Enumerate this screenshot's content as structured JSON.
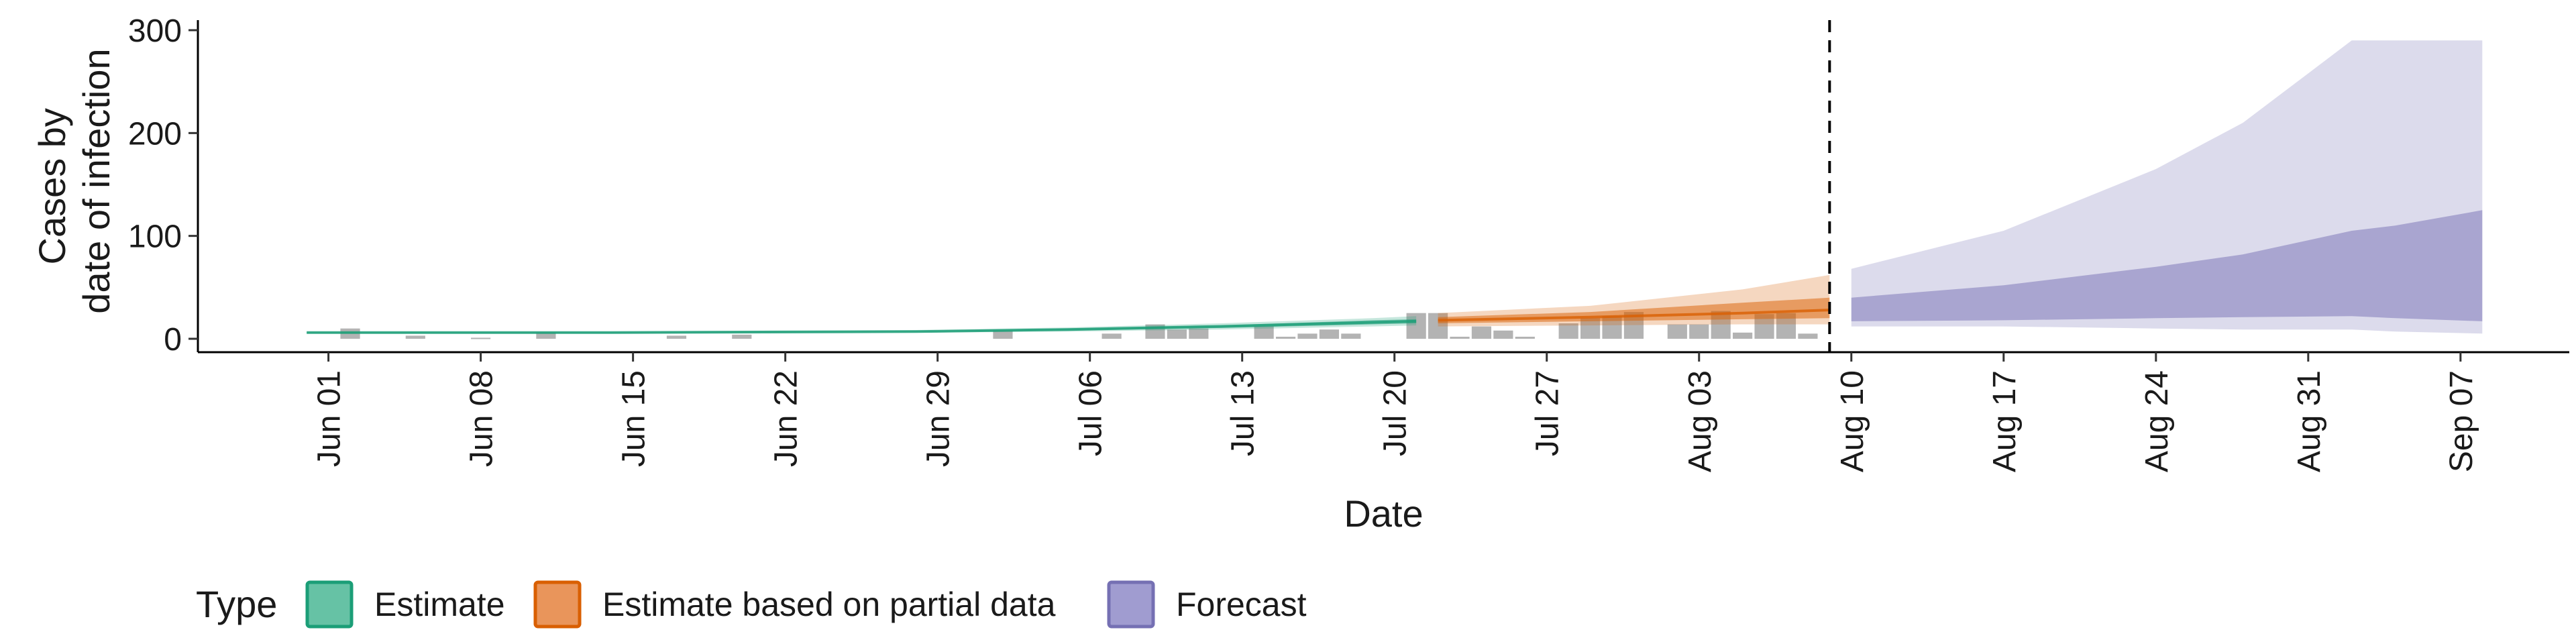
{
  "chart_data": {
    "type": "area",
    "xlabel": "Date",
    "ylabel_lines": [
      "Cases by",
      "date of infection"
    ],
    "ylim": [
      0,
      300
    ],
    "yticks": [
      0,
      100,
      200,
      300
    ],
    "xlim": [
      "2020-05-26",
      "2020-09-12"
    ],
    "xticks": [
      {
        "date": "2020-06-01",
        "label": "Jun 01"
      },
      {
        "date": "2020-06-08",
        "label": "Jun 08"
      },
      {
        "date": "2020-06-15",
        "label": "Jun 15"
      },
      {
        "date": "2020-06-22",
        "label": "Jun 22"
      },
      {
        "date": "2020-06-29",
        "label": "Jun 29"
      },
      {
        "date": "2020-07-06",
        "label": "Jul 06"
      },
      {
        "date": "2020-07-13",
        "label": "Jul 13"
      },
      {
        "date": "2020-07-20",
        "label": "Jul 20"
      },
      {
        "date": "2020-07-27",
        "label": "Jul 27"
      },
      {
        "date": "2020-08-03",
        "label": "Aug 03"
      },
      {
        "date": "2020-08-10",
        "label": "Aug 10"
      },
      {
        "date": "2020-08-17",
        "label": "Aug 17"
      },
      {
        "date": "2020-08-24",
        "label": "Aug 24"
      },
      {
        "date": "2020-08-31",
        "label": "Aug 31"
      },
      {
        "date": "2020-09-07",
        "label": "Sep 07"
      }
    ],
    "vline_date": "2020-08-09",
    "legend": {
      "title": "Type",
      "position": "bottom",
      "entries": [
        {
          "label": "Estimate",
          "fill": "#66c2a5",
          "stroke": "#1b9e77"
        },
        {
          "label": "Estimate based on partial data",
          "fill": "#e9955b",
          "stroke": "#d95f02"
        },
        {
          "label": "Forecast",
          "fill": "#a09cd0",
          "stroke": "#7570b3"
        }
      ]
    },
    "series": [
      {
        "type_label": "Estimate",
        "color": "#1b9e77",
        "bands": [
          {
            "date": "2020-05-31",
            "lo": 5,
            "hi": 7,
            "lo50": 5.5,
            "hi50": 6.5,
            "median": 6
          },
          {
            "date": "2020-06-07",
            "lo": 5,
            "hi": 7,
            "lo50": 5.5,
            "hi50": 6.5,
            "median": 6
          },
          {
            "date": "2020-06-14",
            "lo": 5,
            "hi": 7,
            "lo50": 5.5,
            "hi50": 6.5,
            "median": 6
          },
          {
            "date": "2020-06-21",
            "lo": 5.5,
            "hi": 8,
            "lo50": 6,
            "hi50": 7,
            "median": 6.5
          },
          {
            "date": "2020-06-28",
            "lo": 6,
            "hi": 8.5,
            "lo50": 6.5,
            "hi50": 7.5,
            "median": 7
          },
          {
            "date": "2020-07-05",
            "lo": 7,
            "hi": 11,
            "lo50": 8,
            "hi50": 10,
            "median": 9
          },
          {
            "date": "2020-07-12",
            "lo": 9,
            "hi": 15,
            "lo50": 10.5,
            "hi50": 13,
            "median": 12
          },
          {
            "date": "2020-07-19",
            "lo": 12,
            "hi": 20,
            "lo50": 14,
            "hi50": 18,
            "median": 16
          },
          {
            "date": "2020-07-21",
            "lo": 13,
            "hi": 22,
            "lo50": 15,
            "hi50": 19,
            "median": 17
          }
        ]
      },
      {
        "type_label": "Estimate based on partial data",
        "color": "#d95f02",
        "bands": [
          {
            "date": "2020-07-22",
            "lo": 12,
            "hi": 25,
            "lo50": 15,
            "hi50": 21,
            "median": 18
          },
          {
            "date": "2020-07-29",
            "lo": 13,
            "hi": 32,
            "lo50": 17,
            "hi50": 26,
            "median": 21
          },
          {
            "date": "2020-08-05",
            "lo": 14,
            "hi": 48,
            "lo50": 19,
            "hi50": 35,
            "median": 25
          },
          {
            "date": "2020-08-09",
            "lo": 14,
            "hi": 62,
            "lo50": 20,
            "hi50": 40,
            "median": 28
          }
        ]
      },
      {
        "type_label": "Forecast",
        "color": "#7570b3",
        "bands": [
          {
            "date": "2020-08-10",
            "lo": 12,
            "hi": 68,
            "lo50": 17,
            "hi50": 40
          },
          {
            "date": "2020-08-17",
            "lo": 12,
            "hi": 105,
            "lo50": 18,
            "hi50": 52
          },
          {
            "date": "2020-08-24",
            "lo": 10,
            "hi": 165,
            "lo50": 20,
            "hi50": 70
          },
          {
            "date": "2020-08-28",
            "lo": 9,
            "hi": 210,
            "lo50": 21,
            "hi50": 82
          },
          {
            "date": "2020-09-02",
            "lo": 9,
            "hi": 290,
            "lo50": 22,
            "hi50": 105
          },
          {
            "date": "2020-09-04",
            "lo": 7,
            "hi": 290,
            "lo50": 20,
            "hi50": 110
          },
          {
            "date": "2020-09-08",
            "lo": 5,
            "hi": 290,
            "lo50": 17,
            "hi50": 125
          }
        ]
      }
    ],
    "reported_cases": {
      "color": "#b3b3b3",
      "points": [
        {
          "date": "2020-06-02",
          "value": 10
        },
        {
          "date": "2020-06-05",
          "value": 3
        },
        {
          "date": "2020-06-08",
          "value": 1
        },
        {
          "date": "2020-06-11",
          "value": 6
        },
        {
          "date": "2020-06-17",
          "value": 3
        },
        {
          "date": "2020-06-20",
          "value": 4
        },
        {
          "date": "2020-07-02",
          "value": 8
        },
        {
          "date": "2020-07-07",
          "value": 5
        },
        {
          "date": "2020-07-09",
          "value": 14
        },
        {
          "date": "2020-07-10",
          "value": 9
        },
        {
          "date": "2020-07-11",
          "value": 10
        },
        {
          "date": "2020-07-14",
          "value": 12
        },
        {
          "date": "2020-07-15",
          "value": 2
        },
        {
          "date": "2020-07-16",
          "value": 5
        },
        {
          "date": "2020-07-17",
          "value": 9
        },
        {
          "date": "2020-07-18",
          "value": 5
        },
        {
          "date": "2020-07-21",
          "value": 25
        },
        {
          "date": "2020-07-22",
          "value": 25
        },
        {
          "date": "2020-07-23",
          "value": 2
        },
        {
          "date": "2020-07-24",
          "value": 12
        },
        {
          "date": "2020-07-25",
          "value": 8
        },
        {
          "date": "2020-07-26",
          "value": 2
        },
        {
          "date": "2020-07-28",
          "value": 15
        },
        {
          "date": "2020-07-29",
          "value": 20
        },
        {
          "date": "2020-07-30",
          "value": 22
        },
        {
          "date": "2020-07-31",
          "value": 26
        },
        {
          "date": "2020-08-02",
          "value": 14
        },
        {
          "date": "2020-08-03",
          "value": 14
        },
        {
          "date": "2020-08-04",
          "value": 27
        },
        {
          "date": "2020-08-05",
          "value": 6
        },
        {
          "date": "2020-08-06",
          "value": 24
        },
        {
          "date": "2020-08-07",
          "value": 25
        },
        {
          "date": "2020-08-08",
          "value": 5
        }
      ]
    }
  }
}
